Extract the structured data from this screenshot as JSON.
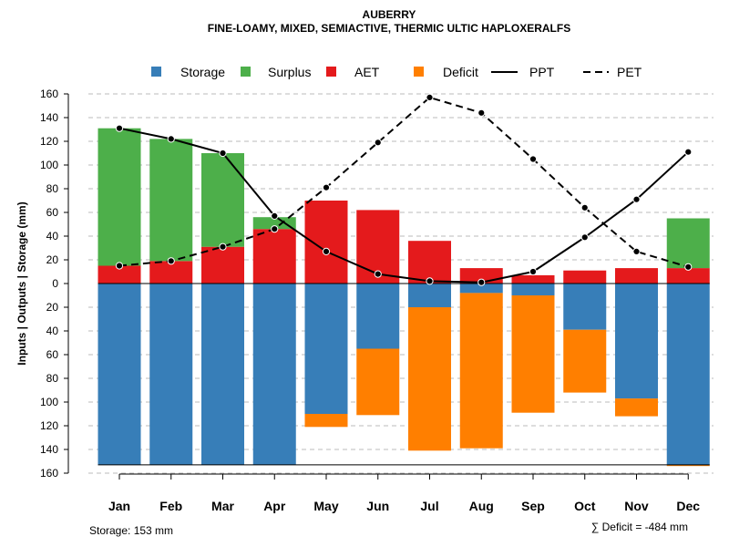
{
  "chart_data": {
    "type": "bar",
    "title": "AUBERRY",
    "subtitle": "FINE-LOAMY, MIXED, SEMIACTIVE, THERMIC ULTIC HAPLOXERALFS",
    "ylabel": "Inputs | Outputs | Storage    (mm)",
    "ylim": [
      -160,
      160
    ],
    "yticks": [
      160,
      140,
      120,
      100,
      80,
      60,
      40,
      20,
      0,
      20,
      40,
      60,
      80,
      100,
      120,
      140,
      160
    ],
    "categories": [
      "Jan",
      "Feb",
      "Mar",
      "Apr",
      "May",
      "Jun",
      "Jul",
      "Aug",
      "Sep",
      "Oct",
      "Nov",
      "Dec"
    ],
    "legend": {
      "storage": "Storage",
      "surplus": "Surplus",
      "aet": "AET",
      "deficit": "Deficit",
      "ppt": "PPT",
      "pet": "PET"
    },
    "colors": {
      "storage": "#377eb8",
      "surplus": "#4daf4a",
      "aet": "#e41a1c",
      "deficit": "#ff7f00",
      "line": "#000000",
      "grid": "#bbbbbb"
    },
    "series": [
      {
        "name": "AET",
        "values": [
          15,
          19,
          31,
          46,
          70,
          62,
          36,
          13,
          7,
          11,
          13,
          13
        ]
      },
      {
        "name": "Surplus",
        "values": [
          116,
          103,
          79,
          10,
          0,
          0,
          0,
          0,
          0,
          0,
          0,
          42
        ]
      },
      {
        "name": "Storage",
        "values": [
          153,
          153,
          153,
          153,
          110,
          55,
          20,
          8,
          10,
          39,
          97,
          153
        ]
      },
      {
        "name": "Deficit",
        "values": [
          0,
          0,
          0,
          0,
          11,
          56,
          121,
          131,
          99,
          53,
          15,
          1
        ]
      },
      {
        "name": "PPT",
        "values": [
          131,
          122,
          110,
          57,
          27,
          8,
          2,
          1,
          10,
          39,
          71,
          111
        ]
      },
      {
        "name": "PET",
        "values": [
          15,
          19,
          31,
          46,
          81,
          119,
          157,
          144,
          105,
          64,
          27,
          14
        ]
      }
    ],
    "storage_capacity": 153
  },
  "footer": {
    "storage_label": "Storage: 153 mm",
    "deficit_label": "∑ Deficit = -484 mm"
  }
}
